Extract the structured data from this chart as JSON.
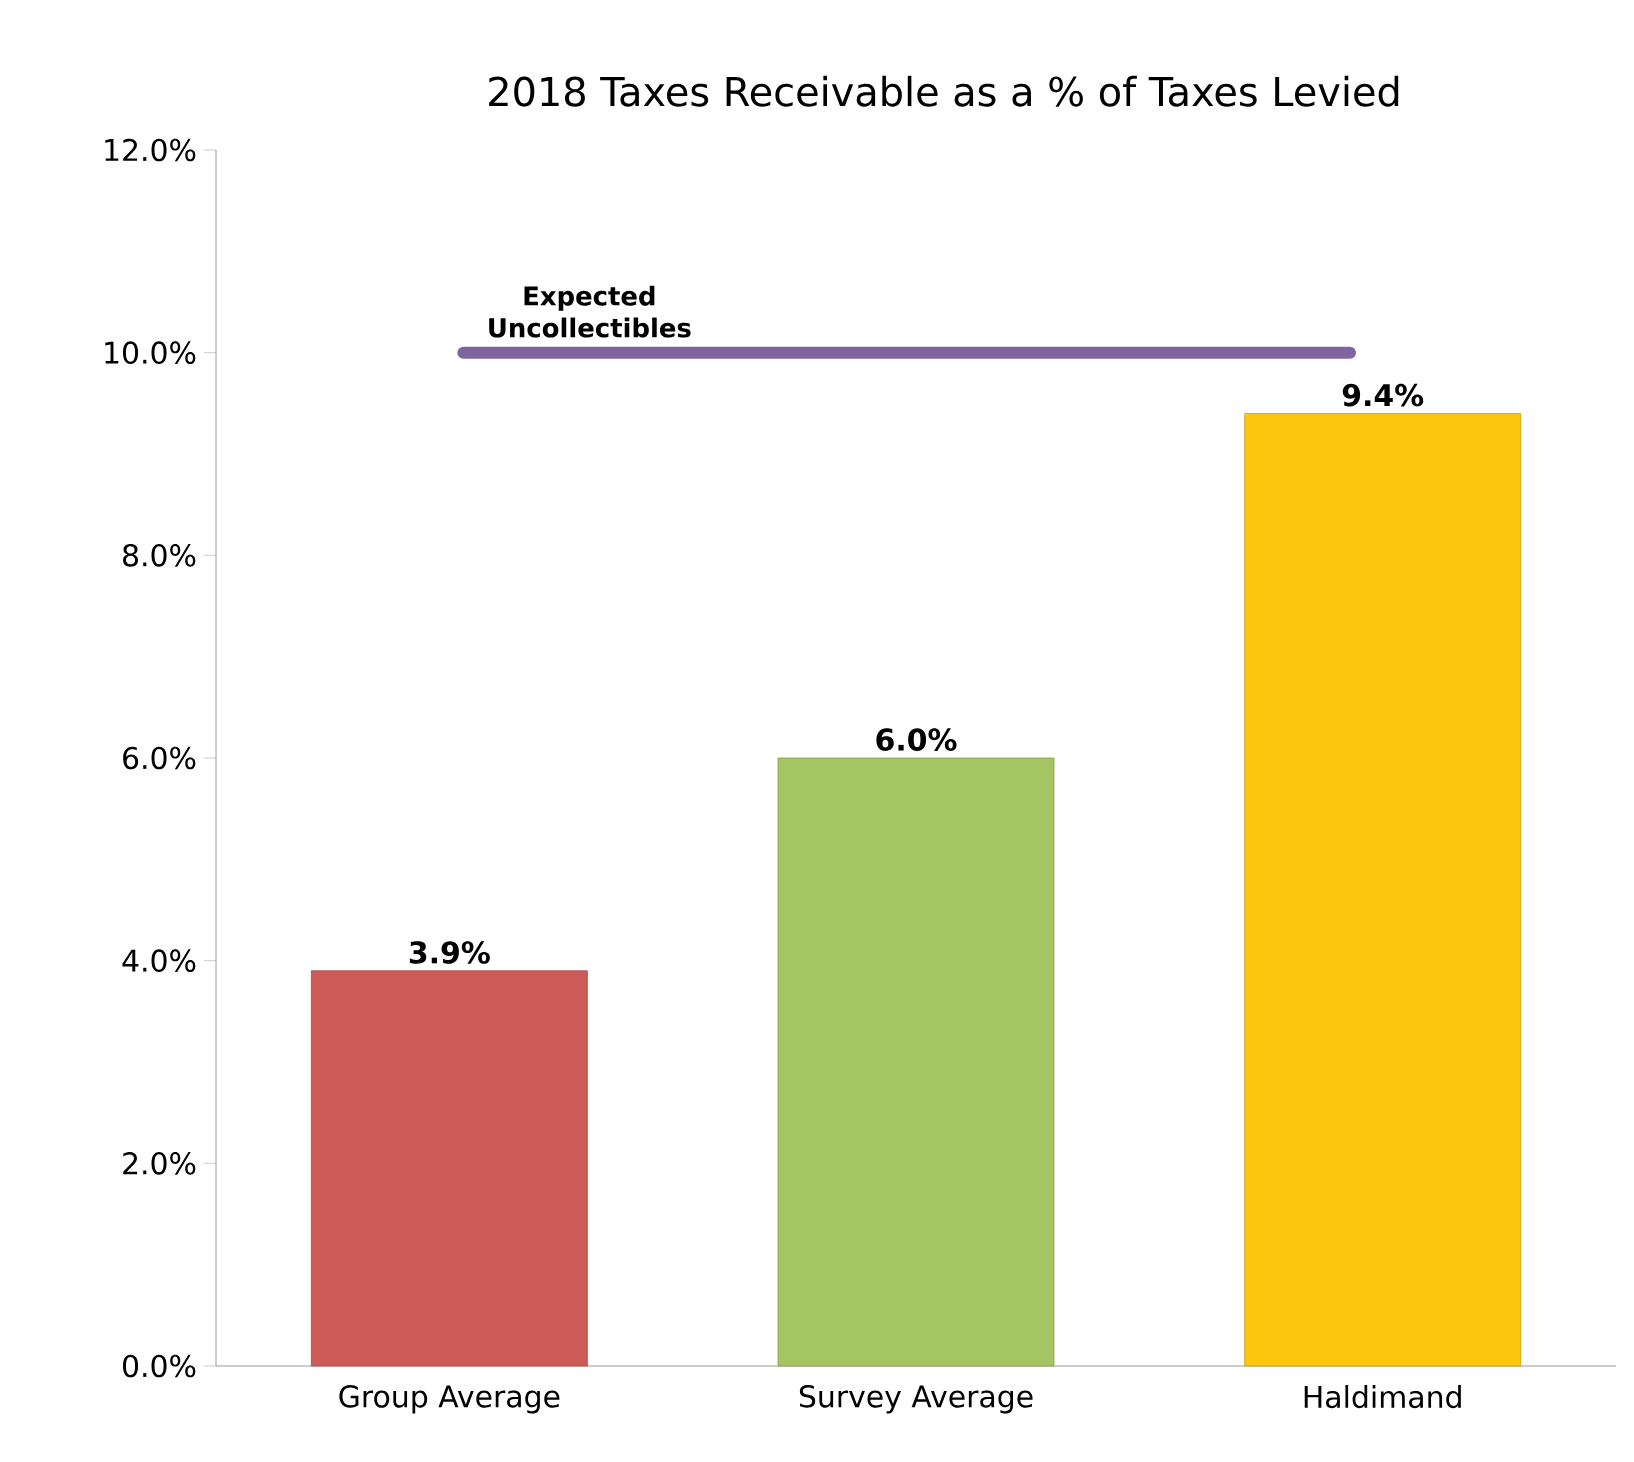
{
  "chart_data": {
    "type": "bar",
    "title": "2018 Taxes Receivable as a % of Taxes Levied",
    "categories": [
      "Group Average",
      "Survey Average",
      "Haldimand"
    ],
    "values": [
      3.9,
      6.0,
      9.4
    ],
    "value_labels": [
      "3.9%",
      "6.0%",
      "9.4%"
    ],
    "colors": [
      "#cd5b57",
      "#a4c562",
      "#fcc60d"
    ],
    "ylim": [
      0,
      12
    ],
    "yticks": [
      {
        "value": 0,
        "label": "0.0%"
      },
      {
        "value": 2,
        "label": "2.0%"
      },
      {
        "value": 4,
        "label": "4.0%"
      },
      {
        "value": 6,
        "label": "6.0%"
      },
      {
        "value": 8,
        "label": "8.0%"
      },
      {
        "value": 10,
        "label": "10.0%"
      },
      {
        "value": 12,
        "label": "12.0%"
      }
    ],
    "ref_lines": [
      {
        "axis": "y",
        "value": 10,
        "label": "Expected Uncollectibles",
        "color": "#8064a2"
      }
    ],
    "grid": false
  }
}
